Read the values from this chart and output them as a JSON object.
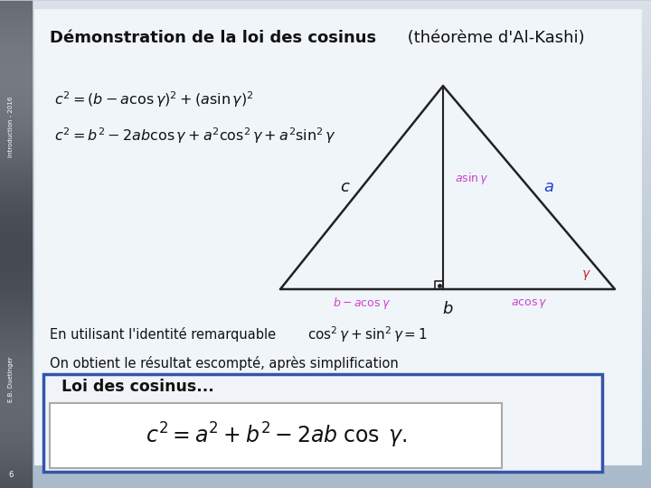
{
  "title_bold": "Démonstration de la loi des cosinus",
  "title_normal": " (théorème d'Al-Kashi)",
  "sidebar_text_top": "Introduction - 2016",
  "sidebar_text_bottom": "E.B. Duetinger",
  "page_number": "6",
  "eq1": "$c^2 = (b - a\\cos\\gamma)^2 + (a\\sin\\gamma)^2$",
  "eq2": "$c^2 = b^2 - 2ab\\cos\\gamma + a^2\\cos^2\\gamma + a^2\\sin^2\\gamma$",
  "label_c": "$c$",
  "label_a": "$a$",
  "label_b": "$b$",
  "label_asin": "$a\\sin\\gamma$",
  "label_acos": "$a\\cos\\gamma$",
  "label_bacos": "$b - a\\cos\\gamma$",
  "label_gamma": "$\\gamma$",
  "text_identity": "En utilisant l'identité remarquable",
  "eq_identity": "$\\cos^2\\gamma + \\sin^2\\gamma = 1$",
  "text_result": "On obtient le résultat escompté, après simplification",
  "box_title": "Loi des cosinus...",
  "eq_final": "$c^2 = a^2 + b^2 - 2ab\\;\\cos\\;\\gamma.$",
  "label_color_black": "#111111",
  "label_color_pink": "#cc44cc",
  "label_color_gamma_red": "#cc2222",
  "label_color_blue": "#2244cc",
  "line_color": "#222222",
  "box_edge_color": "#3355aa",
  "sidebar_bg": "#5a6878",
  "main_bg_top": "#b8c8d8",
  "main_bg_bottom": "#d8e4ee",
  "content_bg": "#edf2f7"
}
